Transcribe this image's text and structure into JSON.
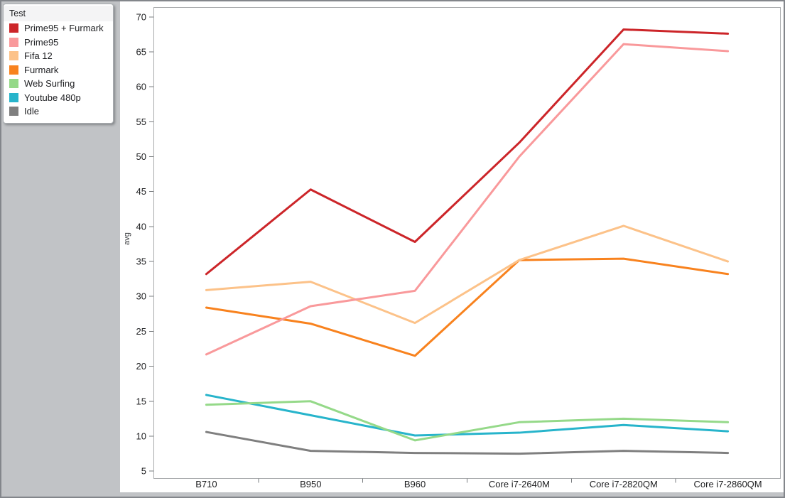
{
  "legend": {
    "title": "Test"
  },
  "y_axis_title": "avg",
  "colors": {
    "window_background": "#c1c3c6",
    "window_border": "#83868b",
    "panel_background": "#ffffff",
    "plot_border": "#a8aaac",
    "tick_mark": "#7a7d80",
    "axis_text": "#1c1d1f"
  },
  "chart_data": {
    "type": "line",
    "title": "",
    "xlabel": "",
    "ylabel": "avg",
    "grid": false,
    "legend_position": "top-left-floating",
    "categories": [
      "B710",
      "B950",
      "B960",
      "Core i7-2640M",
      "Core i7-2820QM",
      "Core i7-2860QM"
    ],
    "yticks": [
      5,
      10,
      15,
      20,
      25,
      30,
      35,
      40,
      45,
      50,
      55,
      60,
      65,
      70
    ],
    "ylim": [
      4.0,
      71.4
    ],
    "series": [
      {
        "name": "Prime95 + Furmark",
        "color": "#cc2529",
        "values": [
          33.2,
          45.3,
          37.8,
          52.0,
          68.2,
          67.6
        ]
      },
      {
        "name": "Prime95",
        "color": "#f9999b",
        "values": [
          21.7,
          28.6,
          30.8,
          50.0,
          66.1,
          65.1
        ]
      },
      {
        "name": "Fifa 12",
        "color": "#fcc289",
        "values": [
          30.9,
          32.1,
          26.2,
          35.2,
          40.1,
          35.0
        ]
      },
      {
        "name": "Furmark",
        "color": "#f8821e",
        "values": [
          28.4,
          26.1,
          21.5,
          35.2,
          35.4,
          33.2
        ]
      },
      {
        "name": "Web Surfing",
        "color": "#95d989",
        "values": [
          14.5,
          15.0,
          9.4,
          12.0,
          12.5,
          12.0
        ]
      },
      {
        "name": "Youtube 480p",
        "color": "#27b4cb",
        "values": [
          15.9,
          13.0,
          10.1,
          10.5,
          11.6,
          10.7
        ]
      },
      {
        "name": "Idle",
        "color": "#7f7f7f",
        "values": [
          10.6,
          7.9,
          7.6,
          7.5,
          7.9,
          7.6
        ]
      }
    ]
  }
}
